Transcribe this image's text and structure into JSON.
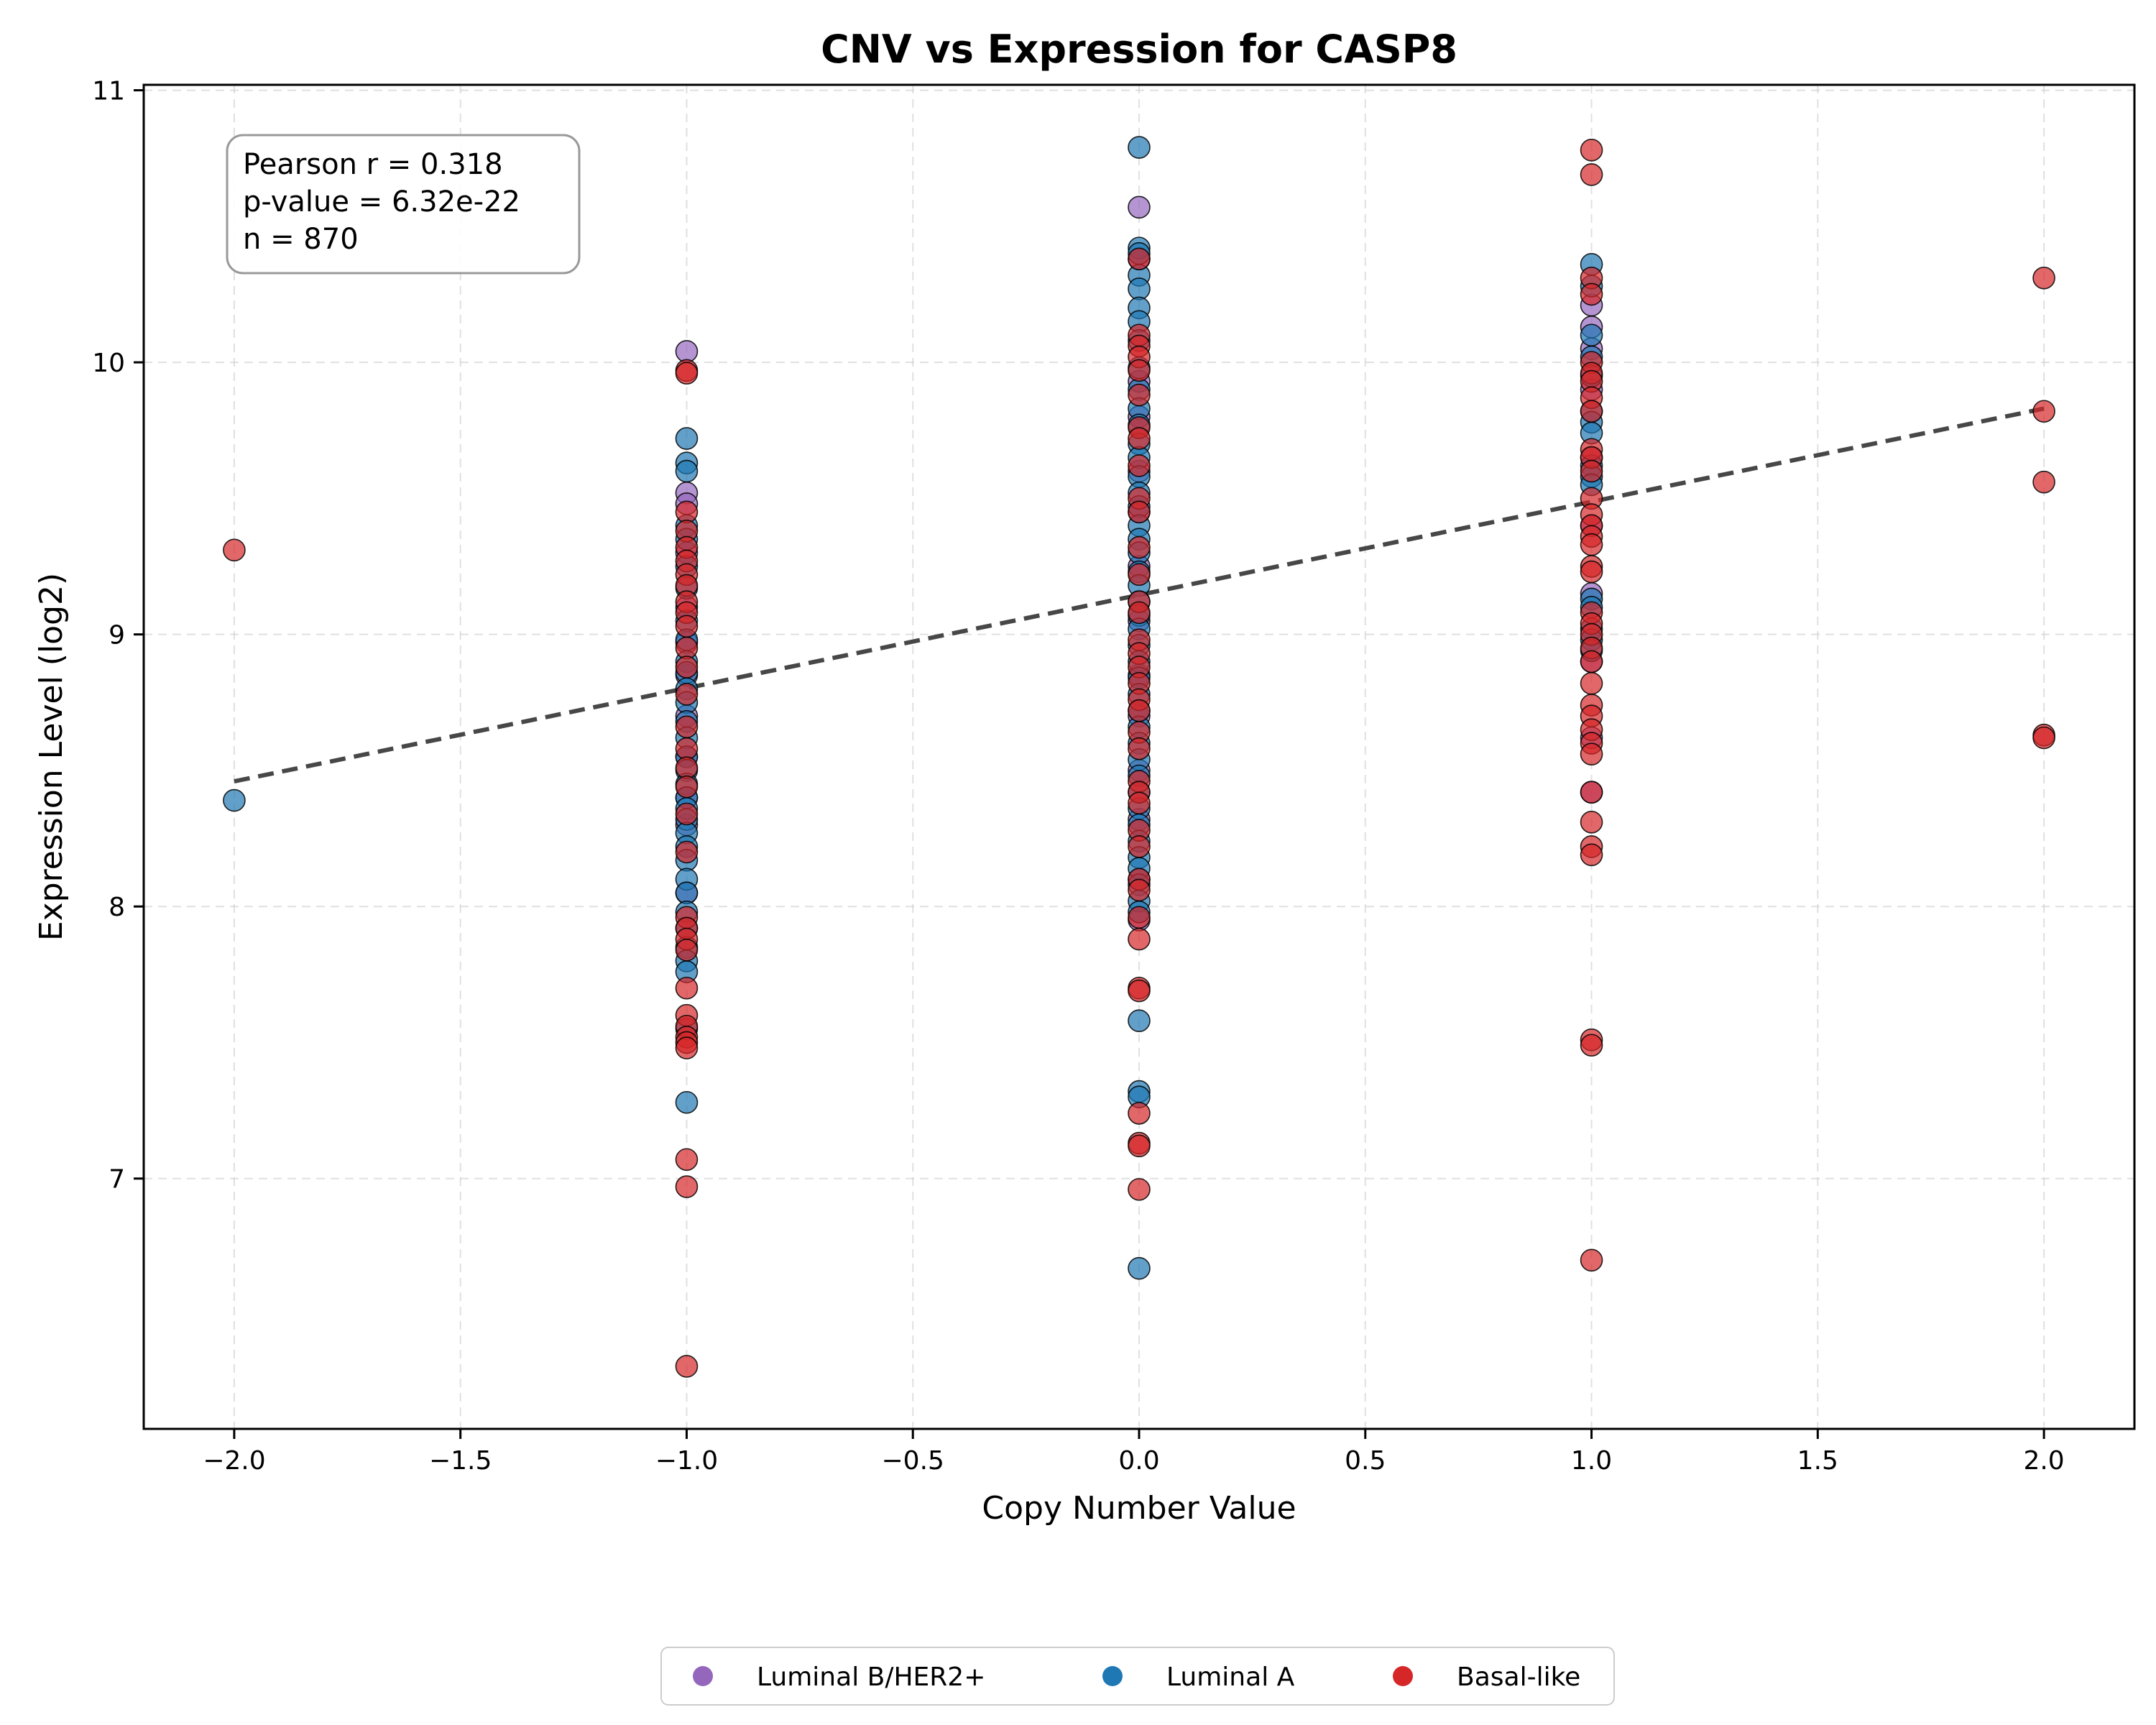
{
  "chart_data": {
    "type": "scatter",
    "title": "CNV vs Expression for CASP8",
    "xlabel": "Copy Number Value",
    "ylabel": "Expression Level (log2)",
    "xlim": [
      -2.2,
      2.2
    ],
    "ylim": [
      6.08,
      11.02
    ],
    "xticks": [
      -2.0,
      -1.5,
      -1.0,
      -0.5,
      0.0,
      0.5,
      1.0,
      1.5,
      2.0
    ],
    "xtick_labels": [
      "−2.0",
      "−1.5",
      "−1.0",
      "−0.5",
      "0.0",
      "0.5",
      "1.0",
      "1.5",
      "2.0"
    ],
    "yticks": [
      7,
      8,
      9,
      10,
      11
    ],
    "ytick_labels": [
      "7",
      "8",
      "9",
      "10",
      "11"
    ],
    "grid": true,
    "legend_position": "bottom-center",
    "stats": {
      "pearson": "Pearson r = 0.318",
      "pvalue": "p-value = 6.32e-22",
      "n": "n = 870"
    },
    "trend_line": {
      "x": [
        -2.0,
        2.0
      ],
      "y": [
        8.46,
        9.83
      ],
      "style": "dashed",
      "color": "#333333"
    },
    "series": [
      {
        "name": "Luminal B/HER2+",
        "color": "#9467bd",
        "points": [
          [
            -1,
            10.04
          ],
          [
            -1,
            9.52
          ],
          [
            -1,
            9.48
          ],
          [
            -1,
            9.3
          ],
          [
            -1,
            9.1
          ],
          [
            -1,
            8.97
          ],
          [
            -1,
            8.85
          ],
          [
            -1,
            8.7
          ],
          [
            -1,
            8.55
          ],
          [
            -1,
            8.4
          ],
          [
            -1,
            8.3
          ],
          [
            -1,
            8.05
          ],
          [
            0,
            10.57
          ],
          [
            0,
            10.38
          ],
          [
            0,
            9.93
          ],
          [
            0,
            9.8
          ],
          [
            0,
            9.6
          ],
          [
            0,
            9.45
          ],
          [
            0,
            9.25
          ],
          [
            0,
            9.05
          ],
          [
            0,
            8.85
          ],
          [
            0,
            8.7
          ],
          [
            0,
            8.5
          ],
          [
            0,
            8.32
          ],
          [
            0,
            8.1
          ],
          [
            0,
            7.95
          ],
          [
            1,
            10.21
          ],
          [
            1,
            10.13
          ],
          [
            1,
            10.05
          ],
          [
            1,
            9.9
          ],
          [
            1,
            9.65
          ],
          [
            1,
            9.4
          ],
          [
            1,
            9.15
          ],
          [
            1,
            8.9
          ],
          [
            1,
            8.62
          ],
          [
            1,
            8.42
          ]
        ]
      },
      {
        "name": "Luminal A",
        "color": "#1f77b4",
        "points": [
          [
            -2,
            8.39
          ],
          [
            -1,
            9.72
          ],
          [
            -1,
            9.63
          ],
          [
            -1,
            9.6
          ],
          [
            -1,
            9.4
          ],
          [
            -1,
            9.35
          ],
          [
            -1,
            9.25
          ],
          [
            -1,
            9.17
          ],
          [
            -1,
            9.05
          ],
          [
            -1,
            8.98
          ],
          [
            -1,
            8.9
          ],
          [
            -1,
            8.86
          ],
          [
            -1,
            8.8
          ],
          [
            -1,
            8.75
          ],
          [
            -1,
            8.68
          ],
          [
            -1,
            8.62
          ],
          [
            -1,
            8.55
          ],
          [
            -1,
            8.5
          ],
          [
            -1,
            8.45
          ],
          [
            -1,
            8.4
          ],
          [
            -1,
            8.36
          ],
          [
            -1,
            8.32
          ],
          [
            -1,
            8.27
          ],
          [
            -1,
            8.22
          ],
          [
            -1,
            8.17
          ],
          [
            -1,
            8.1
          ],
          [
            -1,
            8.05
          ],
          [
            -1,
            7.98
          ],
          [
            -1,
            7.92
          ],
          [
            -1,
            7.85
          ],
          [
            -1,
            7.8
          ],
          [
            -1,
            7.76
          ],
          [
            -1,
            7.55
          ],
          [
            -1,
            7.28
          ],
          [
            0,
            10.79
          ],
          [
            0,
            10.42
          ],
          [
            0,
            10.4
          ],
          [
            0,
            10.32
          ],
          [
            0,
            10.27
          ],
          [
            0,
            10.2
          ],
          [
            0,
            10.15
          ],
          [
            0,
            10.08
          ],
          [
            0,
            9.98
          ],
          [
            0,
            9.9
          ],
          [
            0,
            9.83
          ],
          [
            0,
            9.77
          ],
          [
            0,
            9.7
          ],
          [
            0,
            9.65
          ],
          [
            0,
            9.58
          ],
          [
            0,
            9.52
          ],
          [
            0,
            9.47
          ],
          [
            0,
            9.4
          ],
          [
            0,
            9.35
          ],
          [
            0,
            9.3
          ],
          [
            0,
            9.23
          ],
          [
            0,
            9.18
          ],
          [
            0,
            9.12
          ],
          [
            0,
            9.07
          ],
          [
            0,
            9.02
          ],
          [
            0,
            8.96
          ],
          [
            0,
            8.9
          ],
          [
            0,
            8.84
          ],
          [
            0,
            8.78
          ],
          [
            0,
            8.72
          ],
          [
            0,
            8.66
          ],
          [
            0,
            8.6
          ],
          [
            0,
            8.54
          ],
          [
            0,
            8.48
          ],
          [
            0,
            8.42
          ],
          [
            0,
            8.36
          ],
          [
            0,
            8.3
          ],
          [
            0,
            8.24
          ],
          [
            0,
            8.18
          ],
          [
            0,
            8.14
          ],
          [
            0,
            8.08
          ],
          [
            0,
            8.02
          ],
          [
            0,
            7.98
          ],
          [
            0,
            7.58
          ],
          [
            0,
            7.32
          ],
          [
            0,
            7.3
          ],
          [
            0,
            6.67
          ],
          [
            1,
            10.36
          ],
          [
            1,
            10.28
          ],
          [
            1,
            10.1
          ],
          [
            1,
            10.02
          ],
          [
            1,
            9.95
          ],
          [
            1,
            9.82
          ],
          [
            1,
            9.78
          ],
          [
            1,
            9.74
          ],
          [
            1,
            9.62
          ],
          [
            1,
            9.58
          ],
          [
            1,
            9.55
          ],
          [
            1,
            9.13
          ],
          [
            1,
            9.1
          ],
          [
            1,
            9.02
          ],
          [
            1,
            8.98
          ],
          [
            1,
            8.94
          ]
        ]
      },
      {
        "name": "Basal-like",
        "color": "#d62728",
        "points": [
          [
            -2,
            9.31
          ],
          [
            -1,
            9.97
          ],
          [
            -1,
            9.96
          ],
          [
            -1,
            9.45
          ],
          [
            -1,
            9.38
          ],
          [
            -1,
            9.32
          ],
          [
            -1,
            9.27
          ],
          [
            -1,
            9.22
          ],
          [
            -1,
            9.18
          ],
          [
            -1,
            9.12
          ],
          [
            -1,
            9.08
          ],
          [
            -1,
            9.03
          ],
          [
            -1,
            8.95
          ],
          [
            -1,
            8.88
          ],
          [
            -1,
            8.78
          ],
          [
            -1,
            8.66
          ],
          [
            -1,
            8.58
          ],
          [
            -1,
            8.51
          ],
          [
            -1,
            8.44
          ],
          [
            -1,
            8.34
          ],
          [
            -1,
            8.2
          ],
          [
            -1,
            7.96
          ],
          [
            -1,
            7.92
          ],
          [
            -1,
            7.88
          ],
          [
            -1,
            7.84
          ],
          [
            -1,
            7.7
          ],
          [
            -1,
            7.6
          ],
          [
            -1,
            7.56
          ],
          [
            -1,
            7.52
          ],
          [
            -1,
            7.5
          ],
          [
            -1,
            7.48
          ],
          [
            -1,
            7.07
          ],
          [
            -1,
            6.97
          ],
          [
            -1,
            6.31
          ],
          [
            0,
            10.38
          ],
          [
            0,
            10.1
          ],
          [
            0,
            10.06
          ],
          [
            0,
            10.02
          ],
          [
            0,
            9.97
          ],
          [
            0,
            9.88
          ],
          [
            0,
            9.76
          ],
          [
            0,
            9.72
          ],
          [
            0,
            9.62
          ],
          [
            0,
            9.5
          ],
          [
            0,
            9.45
          ],
          [
            0,
            9.32
          ],
          [
            0,
            9.22
          ],
          [
            0,
            9.12
          ],
          [
            0,
            9.08
          ],
          [
            0,
            8.98
          ],
          [
            0,
            8.93
          ],
          [
            0,
            8.88
          ],
          [
            0,
            8.82
          ],
          [
            0,
            8.76
          ],
          [
            0,
            8.72
          ],
          [
            0,
            8.64
          ],
          [
            0,
            8.58
          ],
          [
            0,
            8.46
          ],
          [
            0,
            8.42
          ],
          [
            0,
            8.38
          ],
          [
            0,
            8.28
          ],
          [
            0,
            8.22
          ],
          [
            0,
            8.1
          ],
          [
            0,
            8.06
          ],
          [
            0,
            7.96
          ],
          [
            0,
            7.88
          ],
          [
            0,
            7.7
          ],
          [
            0,
            7.69
          ],
          [
            0,
            7.24
          ],
          [
            0,
            7.13
          ],
          [
            0,
            7.12
          ],
          [
            0,
            6.96
          ],
          [
            1,
            10.78
          ],
          [
            1,
            10.69
          ],
          [
            1,
            10.31
          ],
          [
            1,
            10.25
          ],
          [
            1,
            10.0
          ],
          [
            1,
            9.96
          ],
          [
            1,
            9.93
          ],
          [
            1,
            9.87
          ],
          [
            1,
            9.82
          ],
          [
            1,
            9.68
          ],
          [
            1,
            9.65
          ],
          [
            1,
            9.6
          ],
          [
            1,
            9.5
          ],
          [
            1,
            9.44
          ],
          [
            1,
            9.4
          ],
          [
            1,
            9.36
          ],
          [
            1,
            9.33
          ],
          [
            1,
            9.25
          ],
          [
            1,
            9.23
          ],
          [
            1,
            9.08
          ],
          [
            1,
            9.04
          ],
          [
            1,
            9.0
          ],
          [
            1,
            8.95
          ],
          [
            1,
            8.9
          ],
          [
            1,
            8.82
          ],
          [
            1,
            8.74
          ],
          [
            1,
            8.7
          ],
          [
            1,
            8.65
          ],
          [
            1,
            8.6
          ],
          [
            1,
            8.56
          ],
          [
            1,
            8.42
          ],
          [
            1,
            8.31
          ],
          [
            1,
            8.22
          ],
          [
            1,
            8.19
          ],
          [
            1,
            7.51
          ],
          [
            1,
            7.49
          ],
          [
            1,
            6.7
          ],
          [
            2,
            10.31
          ],
          [
            2,
            9.82
          ],
          [
            2,
            9.56
          ],
          [
            2,
            8.63
          ],
          [
            2,
            8.62
          ]
        ]
      }
    ]
  }
}
